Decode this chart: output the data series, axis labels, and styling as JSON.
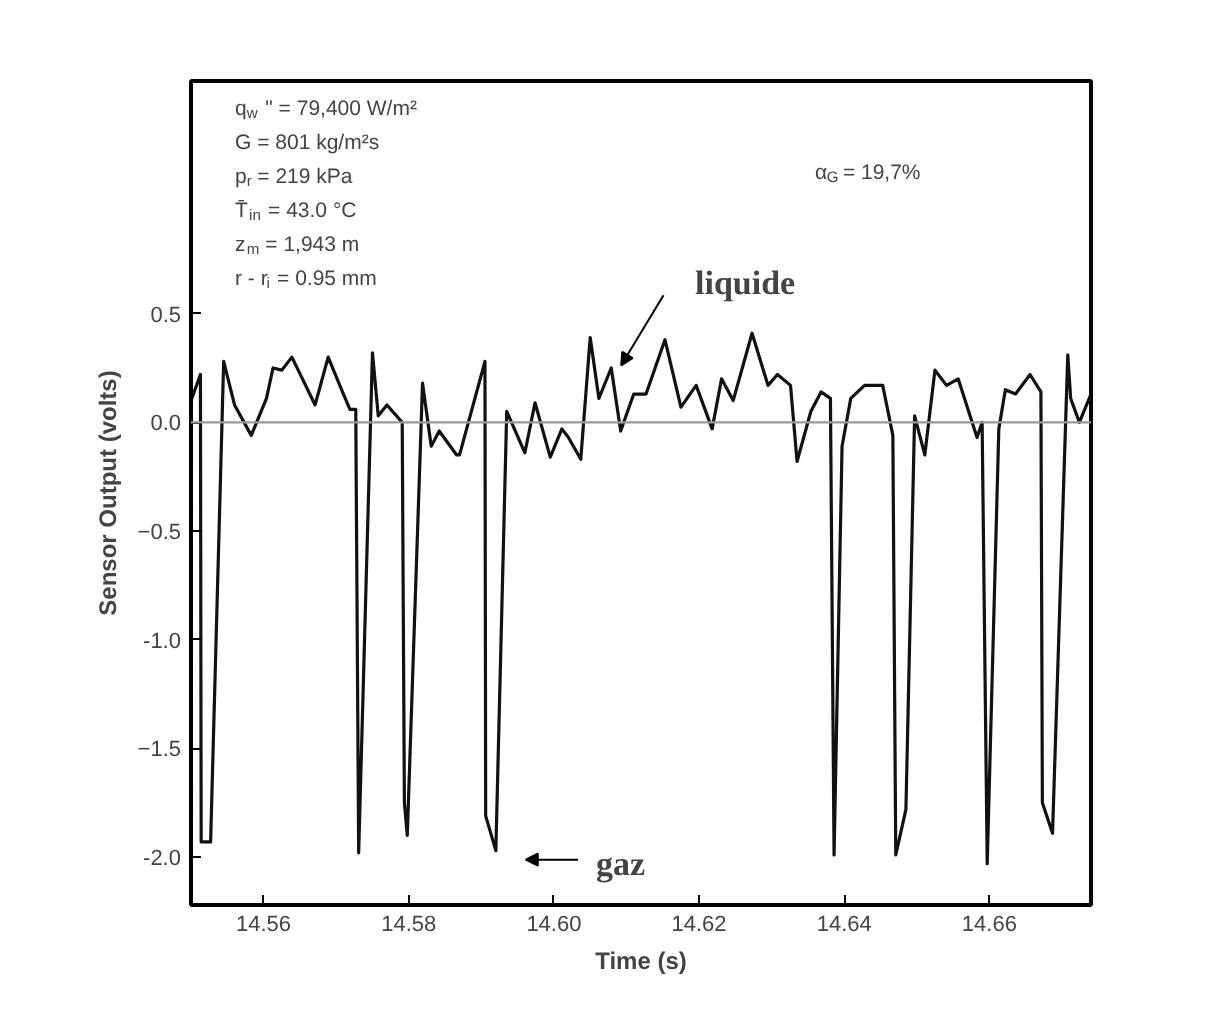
{
  "chart_data": {
    "type": "line",
    "xlabel": "Time (s)",
    "ylabel": "Sensor Output (volts)",
    "x": [
      14.55,
      14.5513,
      14.5514,
      14.5527,
      14.5545,
      14.556,
      14.5583,
      14.5604,
      14.5613,
      14.5625,
      14.5639,
      14.5671,
      14.5689,
      14.571,
      14.5719,
      14.5727,
      14.5731,
      14.575,
      14.5758,
      14.577,
      14.5791,
      14.5794,
      14.5798,
      14.5819,
      14.5831,
      14.5842,
      14.5866,
      14.587,
      14.5905,
      14.5906,
      14.592,
      14.5935,
      14.596,
      14.5974,
      14.5995,
      14.6011,
      14.602,
      14.6037,
      14.605,
      14.6062,
      14.6079,
      14.6092,
      14.611,
      14.6127,
      14.6153,
      14.6175,
      14.6196,
      14.6218,
      14.6231,
      14.6247,
      14.6273,
      14.6295,
      14.6308,
      14.6326,
      14.6335,
      14.6354,
      14.6368,
      14.6381,
      14.6386,
      14.6397,
      14.6409,
      14.6428,
      14.6453,
      14.6467,
      14.6471,
      14.6485,
      14.6497,
      14.6511,
      14.6525,
      14.6541,
      14.6557,
      14.6583,
      14.659,
      14.6597,
      14.6613,
      14.6622,
      14.6636,
      14.6656,
      14.6671,
      14.6673,
      14.6687,
      14.6708,
      14.6712,
      14.6724,
      14.674
    ],
    "series": [
      {
        "color": "#111111",
        "values": [
          0.1,
          0.22,
          -1.93,
          -1.93,
          0.28,
          0.08,
          -0.06,
          0.11,
          0.25,
          0.24,
          0.3,
          0.08,
          0.3,
          0.13,
          0.06,
          0.06,
          -1.98,
          0.32,
          0.03,
          0.08,
          0.0,
          -1.75,
          -1.9,
          0.18,
          -0.11,
          -0.04,
          -0.15,
          -0.15,
          0.28,
          -1.81,
          -1.97,
          0.05,
          -0.14,
          0.09,
          -0.16,
          -0.03,
          -0.07,
          -0.17,
          0.39,
          0.11,
          0.25,
          -0.04,
          0.13,
          0.13,
          0.38,
          0.07,
          0.17,
          -0.03,
          0.2,
          0.1,
          0.41,
          0.17,
          0.22,
          0.17,
          -0.18,
          0.05,
          0.14,
          0.11,
          -1.99,
          -0.11,
          0.11,
          0.17,
          0.17,
          -0.06,
          -1.99,
          -1.78,
          0.03,
          -0.15,
          0.24,
          0.17,
          0.2,
          -0.07,
          0.0,
          -2.03,
          -0.03,
          0.15,
          0.13,
          0.22,
          0.14,
          -1.75,
          -1.89,
          0.31,
          0.11,
          0.0,
          0.13
        ]
      }
    ],
    "xlim": [
      14.55,
      14.674
    ],
    "ylim": [
      -2.22,
      1.57
    ],
    "xticks": [
      14.56,
      14.58,
      {
        "value": 14.6,
        "label": "14.60"
      },
      14.62,
      14.64,
      14.66
    ],
    "yticks": [
      {
        "value": -2.0,
        "label": "-2.0"
      },
      -1.5,
      {
        "value": -1.0,
        "label": "-1.0"
      },
      -0.5,
      {
        "value": 0,
        "label": "0.0"
      },
      0.5
    ],
    "ref_lines": [
      {
        "axis": "y",
        "value": 0,
        "color": "#999999"
      }
    ],
    "grid": false,
    "annotations": [
      "q$_{w}$\" = 79,400 W/m²\nG  = 801 kg/m²s\np$_{r}$ = 219 kPa\nT̄$_{in}$ = 43.0 °C\nz$_{m}$ = 1,943 m\nr - r$_{i}$ = 0.95 mm",
      "α$_{G}$ = 19,7%",
      "liquide",
      "gaz"
    ]
  }
}
